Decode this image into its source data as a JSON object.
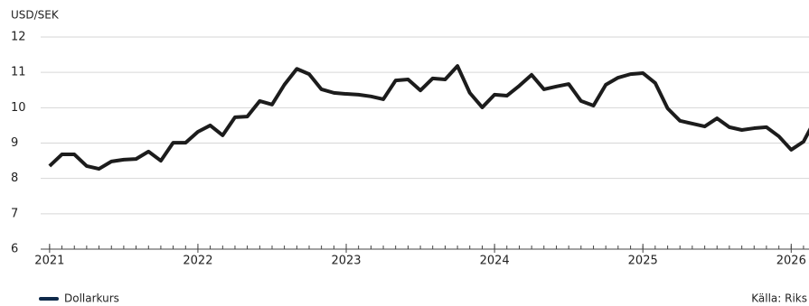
{
  "chart_data": {
    "type": "line",
    "y_label": "USD/SEK",
    "x": [
      2021,
      2021.083,
      2021.167,
      2021.25,
      2021.333,
      2021.417,
      2021.5,
      2021.583,
      2021.667,
      2021.75,
      2021.833,
      2021.917,
      2022,
      2022.083,
      2022.167,
      2022.25,
      2022.333,
      2022.417,
      2022.5,
      2022.583,
      2022.667,
      2022.75,
      2022.833,
      2022.917,
      2023,
      2023.083,
      2023.167,
      2023.25,
      2023.333,
      2023.417,
      2023.5,
      2023.583,
      2023.667,
      2023.75,
      2023.833,
      2023.917,
      2024,
      2024.083,
      2024.167,
      2024.25,
      2024.333,
      2024.417,
      2024.5,
      2024.583,
      2024.667,
      2024.75,
      2024.833,
      2024.917,
      2025,
      2025.083,
      2025.167,
      2025.25,
      2025.333,
      2025.417,
      2025.5,
      2025.583,
      2025.667,
      2025.75,
      2025.833,
      2025.917,
      2026,
      2026.083,
      2026.167
    ],
    "series": [
      {
        "name": "Dollarkurs",
        "color": "#1c1c1c",
        "values": [
          8.35,
          8.68,
          8.68,
          8.35,
          8.27,
          8.48,
          8.53,
          8.55,
          8.76,
          8.5,
          9.01,
          9.01,
          9.32,
          9.5,
          9.22,
          9.73,
          9.75,
          10.19,
          10.09,
          10.65,
          11.1,
          10.95,
          10.52,
          10.42,
          10.39,
          10.37,
          10.32,
          10.24,
          10.77,
          10.8,
          10.49,
          10.83,
          10.8,
          11.18,
          10.42,
          10.01,
          10.37,
          10.34,
          10.62,
          10.93,
          10.52,
          10.6,
          10.67,
          10.19,
          10.06,
          10.65,
          10.85,
          10.95,
          10.98,
          10.7,
          9.98,
          9.63,
          9.55,
          9.47,
          9.7,
          9.45,
          9.37,
          9.42,
          9.45,
          9.19,
          8.81,
          9.04,
          9.7
        ]
      }
    ],
    "xlim": [
      2020.94,
      2026.12
    ],
    "xticks": [
      2021,
      2022,
      2023,
      2024,
      2025,
      2026
    ],
    "ylim": [
      6,
      12
    ],
    "yticks": [
      6,
      7,
      8,
      9,
      10,
      11,
      12
    ],
    "grid": true,
    "legend_color": "#0f2a4a",
    "source": "Källa: Riks"
  }
}
